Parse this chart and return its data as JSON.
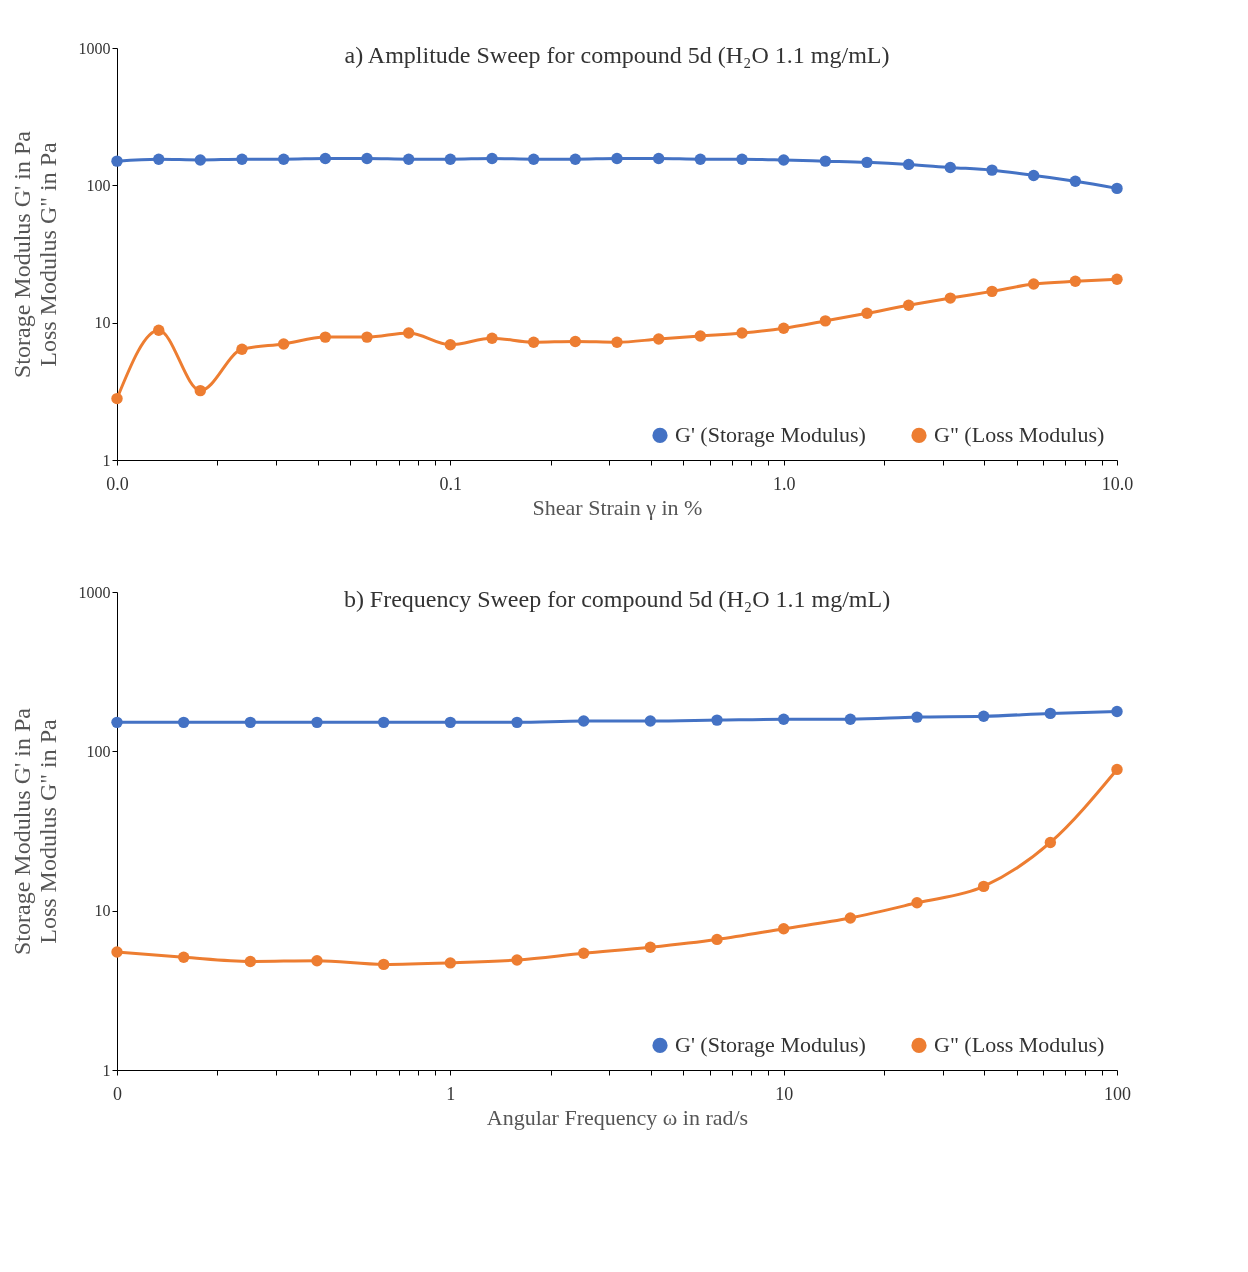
{
  "chart_data": [
    {
      "type": "line",
      "title": "a) Amplitude Sweep for compound 5d (H₂O 1.1 mg/mL)",
      "xlabel": "Shear Strain γ in %",
      "ylabel": "Storage Modulus G' in Pa\nLoss Modulus G\" in Pa",
      "log": "xy",
      "grid": false,
      "legend": "bottom right",
      "marker": "circle",
      "line_style": "solid",
      "x": [
        0.01,
        0.01334,
        0.01778,
        0.02371,
        0.03162,
        0.04217,
        0.05623,
        0.07499,
        0.1,
        0.1334,
        0.1778,
        0.2371,
        0.3162,
        0.4217,
        0.5623,
        0.7499,
        1,
        1.334,
        1.778,
        2.371,
        3.162,
        4.217,
        5.623,
        7.499,
        10
      ],
      "xlim": [
        0.01,
        10
      ],
      "ylim": [
        1,
        1000
      ],
      "xticks": [
        {
          "value": 0.01,
          "label": "0.0"
        },
        {
          "value": 0.02,
          "label": null
        },
        {
          "value": 0.03,
          "label": null
        },
        {
          "value": 0.04,
          "label": null
        },
        {
          "value": 0.05,
          "label": null
        },
        {
          "value": 0.06,
          "label": null
        },
        {
          "value": 0.07,
          "label": null
        },
        {
          "value": 0.08,
          "label": null
        },
        {
          "value": 0.09,
          "label": null
        },
        0.1,
        {
          "value": 0.2,
          "label": null
        },
        {
          "value": 0.3,
          "label": null
        },
        {
          "value": 0.4,
          "label": null
        },
        {
          "value": 0.5,
          "label": null
        },
        {
          "value": 0.6,
          "label": null
        },
        {
          "value": 0.7,
          "label": null
        },
        {
          "value": 0.8,
          "label": null
        },
        {
          "value": 0.9,
          "label": null
        },
        {
          "value": 1,
          "label": "1.0"
        },
        {
          "value": 2,
          "label": null
        },
        {
          "value": 3,
          "label": null
        },
        {
          "value": 4,
          "label": null
        },
        {
          "value": 5,
          "label": null
        },
        {
          "value": 6,
          "label": null
        },
        {
          "value": 7,
          "label": null
        },
        {
          "value": 8,
          "label": null
        },
        {
          "value": 9,
          "label": null
        },
        {
          "value": 10,
          "label": "10.0"
        }
      ],
      "yticks": [
        1,
        10,
        100,
        1000
      ],
      "series": [
        {
          "name": "G' (Storage Modulus)",
          "color": "#4472c4",
          "values": [
            150,
            155,
            153,
            155,
            155,
            157,
            157,
            155,
            155,
            157,
            155,
            155,
            157,
            157,
            155,
            155,
            153,
            150,
            147,
            142,
            135,
            129,
            118,
            107,
            95
          ]
        },
        {
          "name": "G\" (Loss Modulus)",
          "color": "#ed7d31",
          "values": [
            2.8,
            8.8,
            3.2,
            6.4,
            7.0,
            7.85,
            7.85,
            8.4,
            6.9,
            7.7,
            7.2,
            7.3,
            7.2,
            7.6,
            8.0,
            8.4,
            9.1,
            10.3,
            11.7,
            13.4,
            15.1,
            16.9,
            19.1,
            20.0,
            20.7
          ]
        }
      ]
    },
    {
      "type": "line",
      "title": "b) Frequency Sweep for compound 5d (H₂O 1.1 mg/mL)",
      "xlabel": "Angular Frequency ω in rad/s",
      "ylabel": "Storage Modulus G' in Pa\nLoss Modulus G\" in Pa",
      "log": "xy",
      "grid": false,
      "legend": "bottom right",
      "marker": "circle",
      "line_style": "solid",
      "x": [
        0.1,
        0.1585,
        0.2512,
        0.3981,
        0.631,
        1,
        1.585,
        2.512,
        3.981,
        6.31,
        10,
        15.85,
        25.12,
        39.81,
        63.1,
        100
      ],
      "xlim": [
        0.1,
        100
      ],
      "ylim": [
        1,
        1000
      ],
      "xticks": [
        {
          "value": 0.1,
          "label": "0"
        },
        {
          "value": 0.2,
          "label": null
        },
        {
          "value": 0.3,
          "label": null
        },
        {
          "value": 0.4,
          "label": null
        },
        {
          "value": 0.5,
          "label": null
        },
        {
          "value": 0.6,
          "label": null
        },
        {
          "value": 0.7,
          "label": null
        },
        {
          "value": 0.8,
          "label": null
        },
        {
          "value": 0.9,
          "label": null
        },
        1,
        {
          "value": 2,
          "label": null
        },
        {
          "value": 3,
          "label": null
        },
        {
          "value": 4,
          "label": null
        },
        {
          "value": 5,
          "label": null
        },
        {
          "value": 6,
          "label": null
        },
        {
          "value": 7,
          "label": null
        },
        {
          "value": 8,
          "label": null
        },
        {
          "value": 9,
          "label": null
        },
        10,
        {
          "value": 20,
          "label": null
        },
        {
          "value": 30,
          "label": null
        },
        {
          "value": 40,
          "label": null
        },
        {
          "value": 50,
          "label": null
        },
        {
          "value": 60,
          "label": null
        },
        {
          "value": 70,
          "label": null
        },
        {
          "value": 80,
          "label": null
        },
        {
          "value": 90,
          "label": null
        },
        100
      ],
      "yticks": [
        1,
        10,
        100,
        1000
      ],
      "series": [
        {
          "name": "G' (Storage Modulus)",
          "color": "#4472c4",
          "values": [
            152,
            152,
            152,
            152,
            152,
            152,
            152,
            155,
            155,
            157,
            159,
            159,
            164,
            166,
            173,
            178
          ]
        },
        {
          "name": "G\" (Loss Modulus)",
          "color": "#ed7d31",
          "values": [
            5.5,
            5.1,
            4.8,
            4.85,
            4.6,
            4.7,
            4.9,
            5.4,
            5.9,
            6.6,
            7.7,
            9.0,
            11.2,
            14.2,
            26.8,
            77
          ]
        }
      ]
    }
  ]
}
